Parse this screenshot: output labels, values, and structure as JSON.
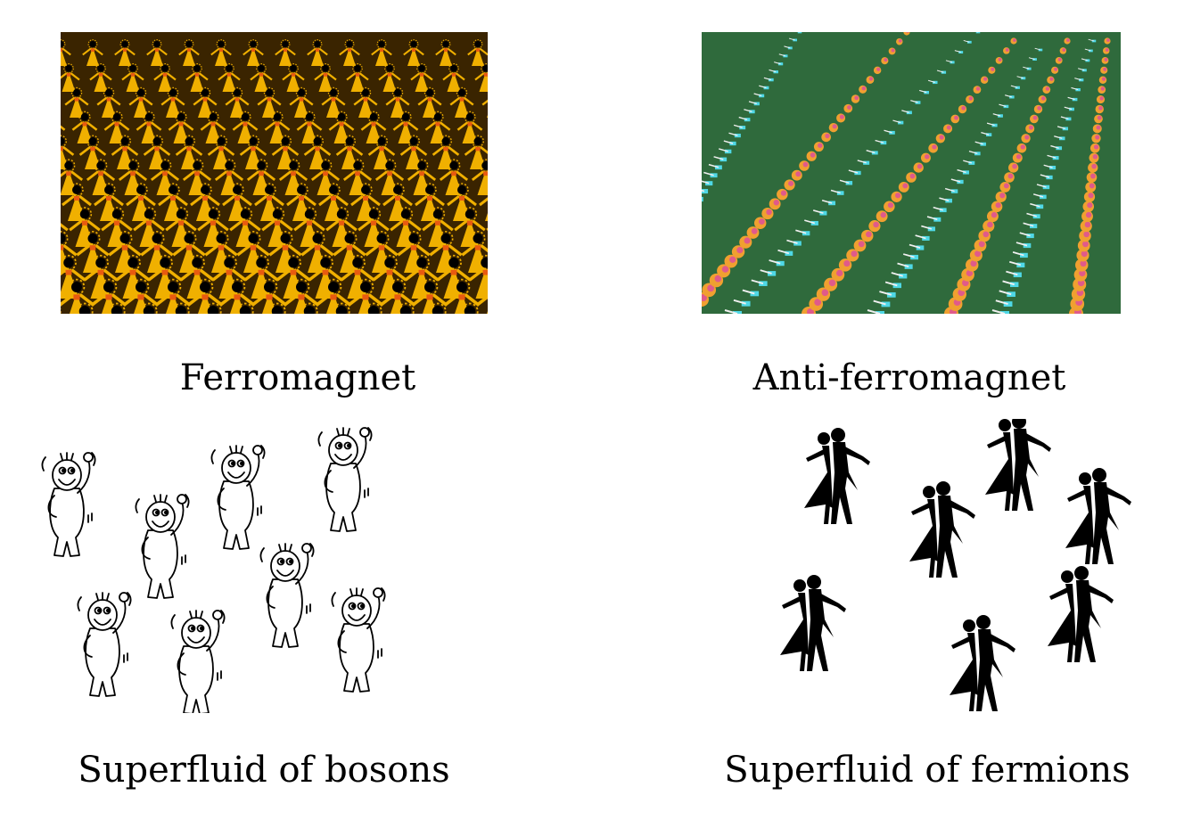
{
  "captions": {
    "ferromagnet": "Ferromagnet",
    "antiferromagnet": "Anti-ferromagnet",
    "bosons": "Superfluid of bosons",
    "fermions": "Superfluid of fermions"
  },
  "colors": {
    "ferro_dancer": "#f0b000",
    "ferro_dark": "#3a2400",
    "ferro_hair": "#000000",
    "ferro_accent": "#e85a10",
    "afm_field": "#2f6a3c",
    "afm_cyan": "#4fd8e6",
    "afm_pink": "#e05a8a",
    "afm_orange": "#f0a030",
    "boson_stroke": "#000000",
    "fermion_fill": "#000000"
  },
  "icons": {
    "boson": "cartoon-boson-icon",
    "fermion": "dancing-couple-icon"
  }
}
